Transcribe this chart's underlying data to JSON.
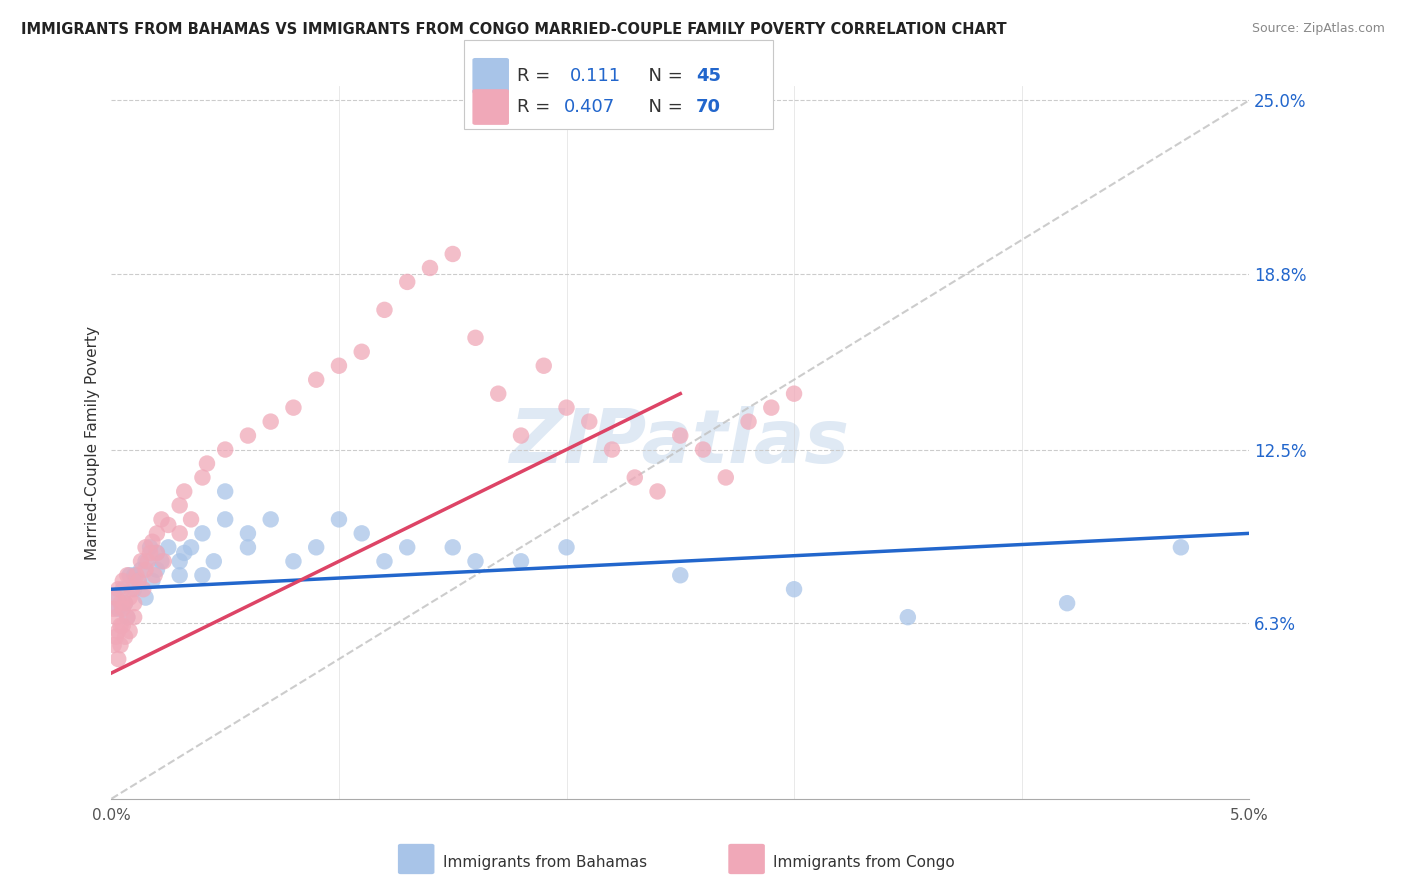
{
  "title": "IMMIGRANTS FROM BAHAMAS VS IMMIGRANTS FROM CONGO MARRIED-COUPLE FAMILY POVERTY CORRELATION CHART",
  "source": "Source: ZipAtlas.com",
  "ylabel": "Married-Couple Family Poverty",
  "watermark": "ZIPatlas",
  "R_bahamas": 0.111,
  "N_bahamas": 45,
  "R_congo": 0.407,
  "N_congo": 70,
  "color_bahamas": "#a8c4e8",
  "color_congo": "#f0a8b8",
  "line_color_bahamas": "#2266cc",
  "line_color_congo": "#dd4466",
  "line_color_dashed": "#c0c0c0",
  "xmin": 0.0,
  "xmax": 0.05,
  "ymin": 0.0,
  "ymax": 0.25,
  "ytick_vals": [
    0.063,
    0.125,
    0.188,
    0.25
  ],
  "ytick_labels": [
    "6.3%",
    "12.5%",
    "18.8%",
    "25.0%"
  ],
  "bahamas_x": [
    0.0002,
    0.0003,
    0.0005,
    0.0006,
    0.0007,
    0.0008,
    0.001,
    0.001,
    0.0012,
    0.0013,
    0.0015,
    0.0015,
    0.0017,
    0.0018,
    0.002,
    0.002,
    0.0022,
    0.0025,
    0.003,
    0.003,
    0.0032,
    0.0035,
    0.004,
    0.004,
    0.0045,
    0.005,
    0.005,
    0.006,
    0.006,
    0.007,
    0.008,
    0.009,
    0.01,
    0.011,
    0.012,
    0.013,
    0.015,
    0.016,
    0.018,
    0.02,
    0.025,
    0.03,
    0.035,
    0.042,
    0.047
  ],
  "bahamas_y": [
    0.072,
    0.068,
    0.075,
    0.07,
    0.065,
    0.08,
    0.075,
    0.08,
    0.078,
    0.082,
    0.085,
    0.072,
    0.09,
    0.078,
    0.082,
    0.088,
    0.085,
    0.09,
    0.08,
    0.085,
    0.088,
    0.09,
    0.08,
    0.095,
    0.085,
    0.1,
    0.11,
    0.095,
    0.09,
    0.1,
    0.085,
    0.09,
    0.1,
    0.095,
    0.085,
    0.09,
    0.09,
    0.085,
    0.085,
    0.09,
    0.08,
    0.075,
    0.065,
    0.07,
    0.09
  ],
  "congo_x": [
    0.0001,
    0.0001,
    0.0002,
    0.0002,
    0.0002,
    0.0003,
    0.0003,
    0.0003,
    0.0004,
    0.0004,
    0.0004,
    0.0005,
    0.0005,
    0.0005,
    0.0006,
    0.0006,
    0.0007,
    0.0007,
    0.0008,
    0.0008,
    0.0009,
    0.001,
    0.001,
    0.0011,
    0.0012,
    0.0013,
    0.0014,
    0.0015,
    0.0015,
    0.0016,
    0.0017,
    0.0018,
    0.0019,
    0.002,
    0.002,
    0.0022,
    0.0023,
    0.0025,
    0.003,
    0.003,
    0.0032,
    0.0035,
    0.004,
    0.0042,
    0.005,
    0.006,
    0.007,
    0.008,
    0.009,
    0.01,
    0.011,
    0.012,
    0.013,
    0.014,
    0.015,
    0.016,
    0.017,
    0.018,
    0.019,
    0.02,
    0.021,
    0.022,
    0.023,
    0.024,
    0.025,
    0.026,
    0.027,
    0.028,
    0.029,
    0.03
  ],
  "congo_y": [
    0.068,
    0.055,
    0.065,
    0.058,
    0.072,
    0.06,
    0.075,
    0.05,
    0.07,
    0.062,
    0.055,
    0.068,
    0.062,
    0.078,
    0.07,
    0.058,
    0.065,
    0.08,
    0.072,
    0.06,
    0.075,
    0.07,
    0.065,
    0.08,
    0.078,
    0.085,
    0.075,
    0.082,
    0.09,
    0.085,
    0.088,
    0.092,
    0.08,
    0.095,
    0.088,
    0.1,
    0.085,
    0.098,
    0.105,
    0.095,
    0.11,
    0.1,
    0.115,
    0.12,
    0.125,
    0.13,
    0.135,
    0.14,
    0.15,
    0.155,
    0.16,
    0.175,
    0.185,
    0.19,
    0.195,
    0.165,
    0.145,
    0.13,
    0.155,
    0.14,
    0.135,
    0.125,
    0.115,
    0.11,
    0.13,
    0.125,
    0.115,
    0.135,
    0.14,
    0.145
  ]
}
